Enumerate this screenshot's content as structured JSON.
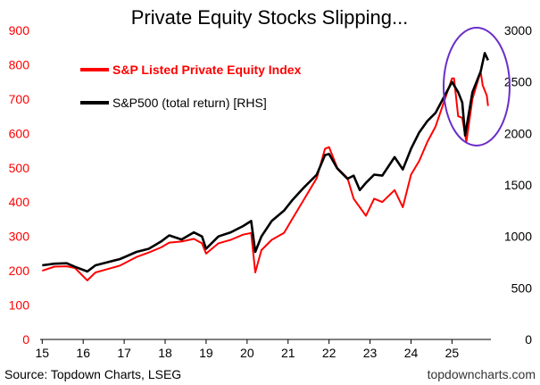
{
  "chart_data": {
    "type": "line",
    "title": "Private Equity Stocks Slipping...",
    "x_ticks": [
      "15",
      "16",
      "17",
      "18",
      "19",
      "20",
      "21",
      "22",
      "23",
      "24",
      "25"
    ],
    "x_range": [
      2014.95,
      2025.95
    ],
    "left_axis": {
      "min": 0,
      "max": 900,
      "ticks": [
        "0",
        "100",
        "200",
        "300",
        "400",
        "500",
        "600",
        "700",
        "800",
        "900"
      ],
      "color": "#ff0000"
    },
    "right_axis": {
      "min": 0,
      "max": 3000,
      "ticks": [
        "0",
        "500",
        "1000",
        "1500",
        "2000",
        "2500",
        "3000"
      ],
      "color": "#000000"
    },
    "legend_position": "top-left",
    "series": [
      {
        "name": "S&P Listed Private Equity Index",
        "axis": "left",
        "color": "#ff0000",
        "points": [
          [
            2015.0,
            200
          ],
          [
            2015.3,
            212
          ],
          [
            2015.6,
            213
          ],
          [
            2015.8,
            208
          ],
          [
            2016.1,
            172
          ],
          [
            2016.3,
            195
          ],
          [
            2016.6,
            205
          ],
          [
            2016.9,
            215
          ],
          [
            2017.3,
            240
          ],
          [
            2017.6,
            253
          ],
          [
            2017.9,
            268
          ],
          [
            2018.1,
            282
          ],
          [
            2018.4,
            285
          ],
          [
            2018.7,
            293
          ],
          [
            2018.9,
            280
          ],
          [
            2019.0,
            250
          ],
          [
            2019.3,
            280
          ],
          [
            2019.6,
            290
          ],
          [
            2019.9,
            305
          ],
          [
            2020.1,
            310
          ],
          [
            2020.2,
            195
          ],
          [
            2020.35,
            260
          ],
          [
            2020.6,
            290
          ],
          [
            2020.9,
            310
          ],
          [
            2021.1,
            350
          ],
          [
            2021.4,
            410
          ],
          [
            2021.7,
            470
          ],
          [
            2021.9,
            555
          ],
          [
            2022.0,
            560
          ],
          [
            2022.2,
            500
          ],
          [
            2022.45,
            470
          ],
          [
            2022.6,
            410
          ],
          [
            2022.75,
            385
          ],
          [
            2022.9,
            360
          ],
          [
            2023.1,
            410
          ],
          [
            2023.3,
            400
          ],
          [
            2023.6,
            435
          ],
          [
            2023.8,
            385
          ],
          [
            2024.0,
            480
          ],
          [
            2024.2,
            520
          ],
          [
            2024.4,
            575
          ],
          [
            2024.6,
            620
          ],
          [
            2024.8,
            690
          ],
          [
            2025.0,
            760
          ],
          [
            2025.05,
            760
          ],
          [
            2025.15,
            650
          ],
          [
            2025.25,
            645
          ],
          [
            2025.35,
            575
          ],
          [
            2025.5,
            700
          ],
          [
            2025.7,
            780
          ],
          [
            2025.75,
            740
          ],
          [
            2025.85,
            710
          ],
          [
            2025.88,
            680
          ]
        ]
      },
      {
        "name": "S&P500 (total return) [RHS]",
        "axis": "right",
        "color": "#000000",
        "points": [
          [
            2015.0,
            720
          ],
          [
            2015.3,
            735
          ],
          [
            2015.6,
            740
          ],
          [
            2015.8,
            705
          ],
          [
            2016.1,
            660
          ],
          [
            2016.3,
            720
          ],
          [
            2016.6,
            750
          ],
          [
            2016.9,
            780
          ],
          [
            2017.3,
            850
          ],
          [
            2017.6,
            880
          ],
          [
            2017.9,
            950
          ],
          [
            2018.1,
            1010
          ],
          [
            2018.4,
            970
          ],
          [
            2018.7,
            1040
          ],
          [
            2018.9,
            1000
          ],
          [
            2019.0,
            880
          ],
          [
            2019.3,
            1000
          ],
          [
            2019.6,
            1040
          ],
          [
            2019.9,
            1100
          ],
          [
            2020.1,
            1150
          ],
          [
            2020.2,
            850
          ],
          [
            2020.35,
            1000
          ],
          [
            2020.6,
            1150
          ],
          [
            2020.9,
            1250
          ],
          [
            2021.1,
            1350
          ],
          [
            2021.4,
            1480
          ],
          [
            2021.7,
            1600
          ],
          [
            2021.9,
            1790
          ],
          [
            2022.0,
            1800
          ],
          [
            2022.2,
            1660
          ],
          [
            2022.45,
            1560
          ],
          [
            2022.6,
            1590
          ],
          [
            2022.75,
            1450
          ],
          [
            2022.9,
            1520
          ],
          [
            2023.1,
            1600
          ],
          [
            2023.3,
            1590
          ],
          [
            2023.6,
            1770
          ],
          [
            2023.8,
            1650
          ],
          [
            2024.0,
            1850
          ],
          [
            2024.2,
            2010
          ],
          [
            2024.4,
            2120
          ],
          [
            2024.6,
            2200
          ],
          [
            2024.8,
            2350
          ],
          [
            2025.0,
            2500
          ],
          [
            2025.15,
            2400
          ],
          [
            2025.25,
            2300
          ],
          [
            2025.32,
            1980
          ],
          [
            2025.5,
            2400
          ],
          [
            2025.7,
            2600
          ],
          [
            2025.8,
            2780
          ],
          [
            2025.88,
            2710
          ]
        ]
      }
    ],
    "annotation": {
      "shape": "ellipse",
      "color": "#6a2ec8"
    },
    "source": "Source: Topdown Charts, LSEG",
    "brand": "topdowncharts.com"
  }
}
